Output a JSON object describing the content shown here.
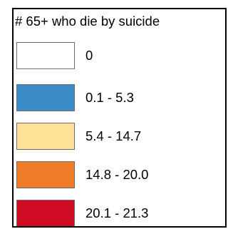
{
  "legend": {
    "title": "# 65+ who die by suicide",
    "items": [
      {
        "label": "0",
        "color": "#ffffff"
      },
      {
        "label": "0.1 - 5.3",
        "color": "#3b8bc6"
      },
      {
        "label": "5.4 - 14.7",
        "color": "#fee196"
      },
      {
        "label": "14.8 - 20.0",
        "color": "#f07b28"
      },
      {
        "label": "20.1 - 21.3",
        "color": "#cf0a23"
      }
    ]
  }
}
